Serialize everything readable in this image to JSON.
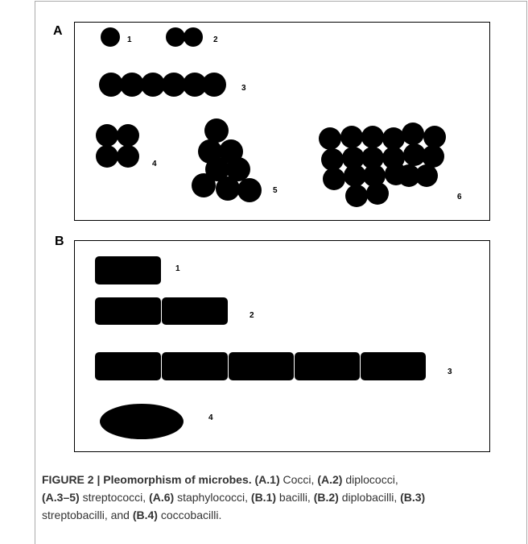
{
  "panels": [
    {
      "label": "A",
      "items": [
        "1",
        "2",
        "3",
        "4",
        "5",
        "6"
      ]
    },
    {
      "label": "B",
      "items": [
        "1",
        "2",
        "3",
        "4"
      ]
    }
  ],
  "caption": [
    "FIGURE 2 | Pleomorphism of microbes. (A.1)",
    "Cocci,",
    "(A.2)",
    "diplococci,",
    "(A.3–5)",
    "streptococci,",
    "(A.6)",
    "staphylococci,",
    "(B.1)",
    "bacilli,",
    "(B.2)",
    "diplobacilli,",
    "(B.3)",
    "streptobacilli, and",
    "(B.4)",
    "coccobacilli."
  ]
}
